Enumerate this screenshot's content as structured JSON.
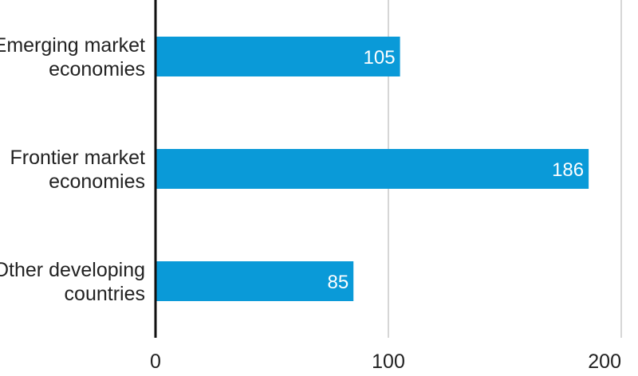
{
  "chart_data": {
    "type": "bar",
    "orientation": "horizontal",
    "categories": [
      [
        "Emerging market",
        "economies"
      ],
      [
        "Frontier market",
        "economies"
      ],
      [
        "Other developing",
        "countries"
      ]
    ],
    "values": [
      105,
      186,
      85
    ],
    "value_labels": [
      "105",
      "186",
      "85"
    ],
    "xticks": [
      0,
      100,
      200
    ],
    "xtick_labels": [
      "0",
      "100",
      "200"
    ],
    "xlim": [
      0,
      200
    ],
    "grid": "vertical",
    "bar_color": "#0a9ad8",
    "grid_color": "#c8c8c8",
    "axis_color": "#111111",
    "title": "",
    "xlabel": "",
    "ylabel": ""
  }
}
